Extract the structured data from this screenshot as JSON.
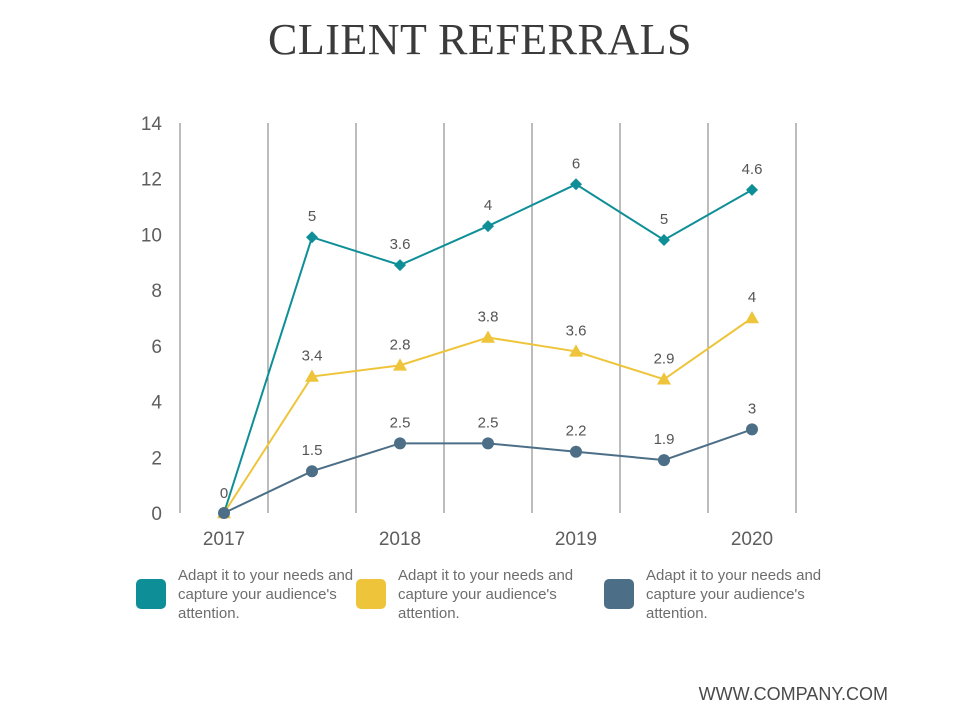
{
  "title": "CLIENT REFERRALS",
  "footer": "WWW.COMPANY.COM",
  "legend": [
    {
      "text": "Adapt it to your needs and capture your audience's attention.",
      "color": "#0e8f97"
    },
    {
      "text": "Adapt it to your needs and capture your audience's attention.",
      "color": "#eec53a"
    },
    {
      "text": "Adapt it to your needs and capture your audience's attention.",
      "color": "#4c6f87"
    }
  ],
  "chart_data": {
    "type": "line",
    "title": "CLIENT REFERRALS",
    "xlabel": "",
    "ylabel": "",
    "ylim": [
      0,
      14
    ],
    "yticks": [
      0,
      2,
      4,
      6,
      8,
      10,
      12,
      14
    ],
    "x": [
      2017,
      2017.5,
      2018,
      2018.5,
      2019,
      2019.5,
      2020
    ],
    "xtick_labels": [
      {
        "x": 2017,
        "label": "2017"
      },
      {
        "x": 2018,
        "label": "2018"
      },
      {
        "x": 2019,
        "label": "2019"
      },
      {
        "x": 2020,
        "label": "2020"
      }
    ],
    "vertical_grid": true,
    "legend_position": "bottom",
    "series": [
      {
        "color": "#0e8f97",
        "marker": "diamond",
        "values": [
          0,
          9.9,
          8.9,
          10.3,
          11.8,
          9.8,
          11.6
        ],
        "labels": [
          "0",
          "5",
          "3.6",
          "4",
          "6",
          "5",
          "4.6"
        ]
      },
      {
        "color": "#eec53a",
        "marker": "triangle",
        "values": [
          0,
          4.9,
          5.3,
          6.3,
          5.8,
          4.8,
          7.0
        ],
        "labels": [
          "0",
          "3.4",
          "2.8",
          "3.8",
          "3.6",
          "2.9",
          "4"
        ]
      },
      {
        "color": "#4c6f87",
        "marker": "circle",
        "values": [
          0,
          1.5,
          2.5,
          2.5,
          2.2,
          1.9,
          3.0
        ],
        "labels": [
          "0",
          "1.5",
          "2.5",
          "2.5",
          "2.2",
          "1.9",
          "3"
        ]
      }
    ]
  }
}
